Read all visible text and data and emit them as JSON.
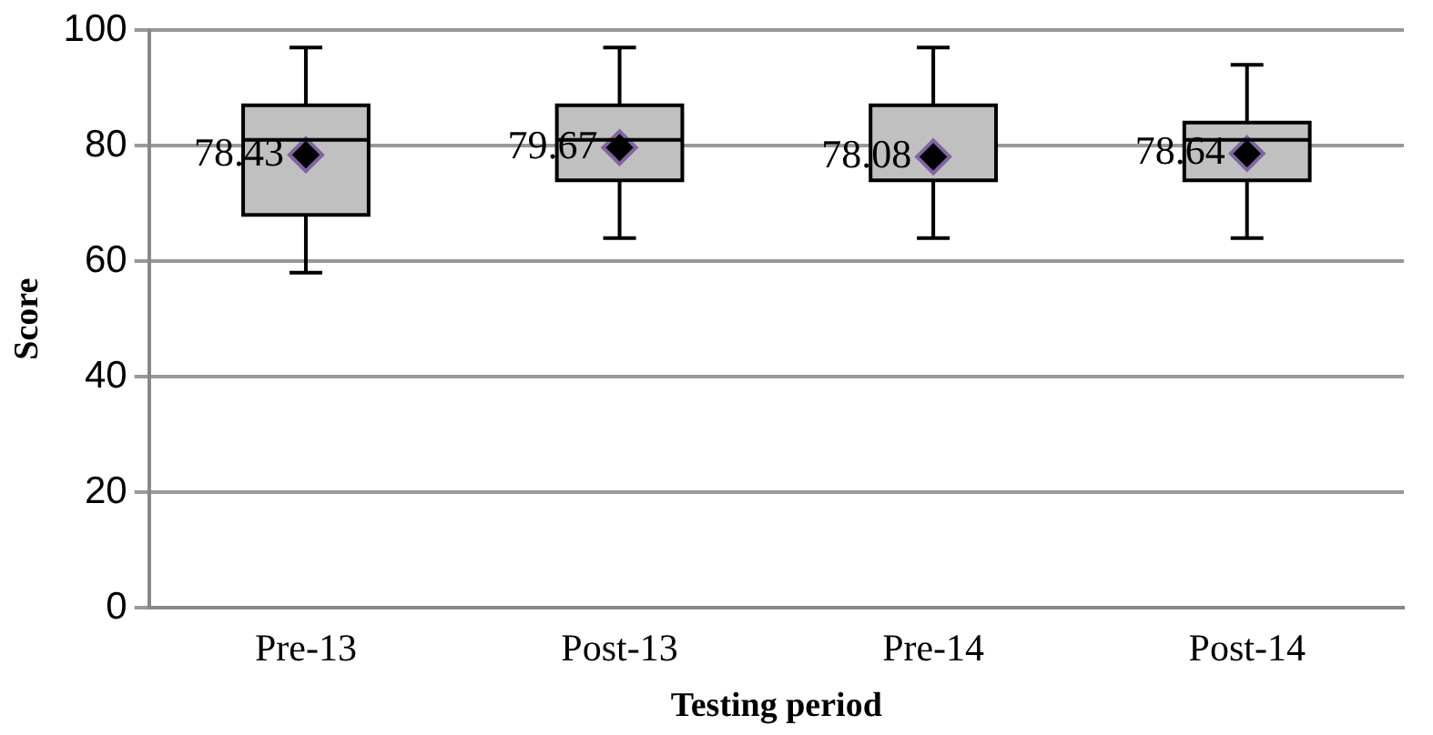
{
  "chart_data": {
    "type": "box",
    "xlabel": "Testing period",
    "ylabel": "Score",
    "categories": [
      "Pre-13",
      "Post-13",
      "Pre-14",
      "Post-14"
    ],
    "boxes": [
      {
        "low": 58,
        "q1": 68,
        "median": 81,
        "q3": 87,
        "high": 97
      },
      {
        "low": 64,
        "q1": 74,
        "median": 81,
        "q3": 87,
        "high": 97
      },
      {
        "low": 64,
        "q1": 74,
        "median": 74,
        "q3": 87,
        "high": 97
      },
      {
        "low": 64,
        "q1": 74,
        "median": 81,
        "q3": 84,
        "high": 94
      }
    ],
    "series": [
      {
        "type": "scatter",
        "x": [
          "Pre-13",
          "Post-13",
          "Pre-14",
          "Post-14"
        ],
        "values": [
          78.43,
          79.67,
          78.08,
          78.64
        ],
        "color": "#000000"
      }
    ],
    "color": "#c0c0c0",
    "ylim": [
      0,
      100
    ],
    "yticks": [
      0,
      20,
      40,
      60,
      80,
      100
    ],
    "grid": "y",
    "data_labels": true,
    "marker": "diamond"
  }
}
